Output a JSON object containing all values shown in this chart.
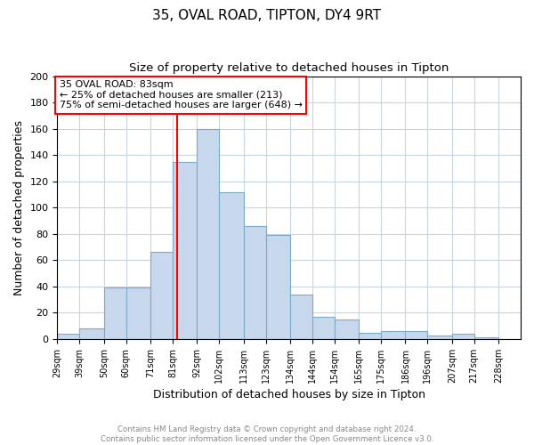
{
  "title": "35, OVAL ROAD, TIPTON, DY4 9RT",
  "subtitle": "Size of property relative to detached houses in Tipton",
  "xlabel": "Distribution of detached houses by size in Tipton",
  "ylabel": "Number of detached properties",
  "bar_color": "#c8d8ec",
  "bar_edge_color": "#7aaac8",
  "vline_x": 83,
  "vline_color": "red",
  "annotation_title": "35 OVAL ROAD: 83sqm",
  "annotation_line1": "← 25% of detached houses are smaller (213)",
  "annotation_line2": "75% of semi-detached houses are larger (648) →",
  "bins": [
    29,
    39,
    50,
    60,
    71,
    81,
    92,
    102,
    113,
    123,
    134,
    144,
    154,
    165,
    175,
    186,
    196,
    207,
    217,
    228,
    238
  ],
  "counts": [
    4,
    8,
    39,
    39,
    66,
    135,
    160,
    112,
    86,
    79,
    34,
    17,
    15,
    5,
    6,
    6,
    3,
    4,
    1,
    0
  ],
  "ylim": [
    0,
    200
  ],
  "yticks": [
    0,
    20,
    40,
    60,
    80,
    100,
    120,
    140,
    160,
    180,
    200
  ],
  "footer1": "Contains HM Land Registry data © Crown copyright and database right 2024.",
  "footer2": "Contains public sector information licensed under the Open Government Licence v3.0.",
  "bg_color": "#ffffff",
  "grid_color": "#c8d4e0"
}
